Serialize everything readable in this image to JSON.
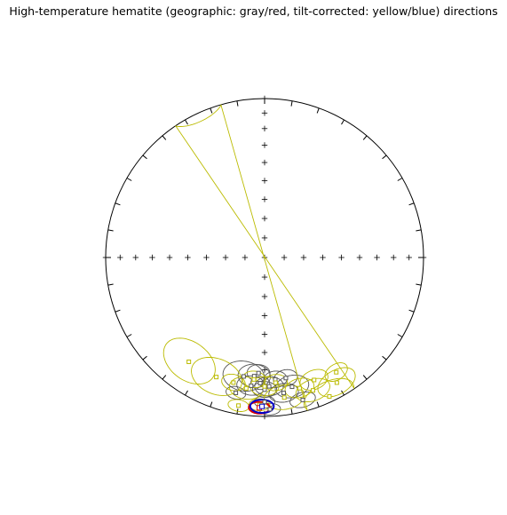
{
  "chart_data": {
    "type": "scatter",
    "projection": "equal-area stereonet",
    "title": "High-temperature hematite (geographic: gray/red, tilt-corrected: yellow/blue) directions",
    "grid": false,
    "colors": {
      "geographic": "#555555",
      "geographic_mean": "#dd0000",
      "tilt_corrected": "#bbbb00",
      "tilt_corrected_mean": "#0000cc",
      "frame": "#000000"
    },
    "series": [
      {
        "key": "geographic",
        "points": [
          {
            "dec": 10,
            "inc": -25,
            "a95": 9
          },
          {
            "dec": 0,
            "inc": -18,
            "a95": 5
          },
          {
            "dec": 2,
            "inc": -22,
            "a95": 4
          },
          {
            "dec": 358,
            "inc": -20,
            "a95": 6
          },
          {
            "dec": 5,
            "inc": -26,
            "a95": 7
          },
          {
            "dec": 355,
            "inc": -24,
            "a95": 5
          },
          {
            "dec": 352,
            "inc": -15,
            "a95": 6
          },
          {
            "dec": 348,
            "inc": -18,
            "a95": 7
          },
          {
            "dec": 3,
            "inc": -28,
            "a95": 5
          },
          {
            "dec": 0,
            "inc": -10,
            "a95": 4
          },
          {
            "dec": 12,
            "inc": -14,
            "a95": 4
          },
          {
            "dec": 345,
            "inc": -8,
            "a95": 5
          },
          {
            "dec": 358,
            "inc": -5,
            "a95": 4
          },
          {
            "dec": 350,
            "inc": -24,
            "a95": 5
          },
          {
            "dec": 6,
            "inc": -20,
            "a95": 6
          }
        ]
      },
      {
        "key": "tilt_corrected",
        "points": [
          {
            "dec": 335,
            "inc": -4,
            "a95": 10
          },
          {
            "dec": 330,
            "inc": -10,
            "a95": 8
          },
          {
            "dec": 340,
            "inc": -12,
            "a95": 7
          },
          {
            "dec": 345,
            "inc": -16,
            "a95": 6
          },
          {
            "dec": 352,
            "inc": -12,
            "a95": 8
          },
          {
            "dec": 0,
            "inc": -20,
            "a95": 6
          },
          {
            "dec": 8,
            "inc": -18,
            "a95": 7
          },
          {
            "dec": 14,
            "inc": -20,
            "a95": 5
          },
          {
            "dec": 22,
            "inc": -20,
            "a95": 11
          },
          {
            "dec": 36,
            "inc": -20,
            "a95": 12
          },
          {
            "dec": 355,
            "inc": -22,
            "a95": 5
          },
          {
            "dec": 5,
            "inc": -24,
            "a95": 5
          },
          {
            "dec": 338,
            "inc": -18,
            "a95": 6
          },
          {
            "dec": 328,
            "inc": -16,
            "a95": 5
          },
          {
            "dec": 2,
            "inc": -8,
            "a95": 4
          },
          {
            "dec": 10,
            "inc": -6,
            "a95": 4
          }
        ]
      },
      {
        "key": "geographic_mean",
        "points": [
          {
            "dec": 2,
            "inc": -6,
            "a95": 4
          }
        ]
      },
      {
        "key": "tilt_corrected_mean",
        "points": [
          {
            "dec": 1,
            "inc": -7,
            "a95": 4.5
          }
        ]
      }
    ]
  }
}
